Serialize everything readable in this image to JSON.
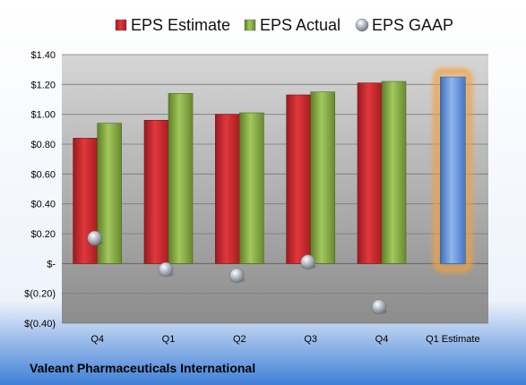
{
  "chart_data": {
    "type": "bar",
    "categories": [
      "Q4",
      "Q1",
      "Q2",
      "Q3",
      "Q4",
      "Q1 Estimate"
    ],
    "series": [
      {
        "name": "EPS Estimate",
        "color": "#c0252a",
        "values": [
          0.84,
          0.96,
          1.0,
          1.13,
          1.21,
          null
        ]
      },
      {
        "name": "EPS Actual",
        "color": "#7da33c",
        "values": [
          0.94,
          1.14,
          1.01,
          1.15,
          1.22,
          null
        ]
      },
      {
        "name": "EPS GAAP",
        "color": "#a0a8b2",
        "marker": "sphere",
        "values": [
          0.17,
          -0.04,
          -0.08,
          0.01,
          -0.29,
          null
        ]
      },
      {
        "name": "Q1 Estimate",
        "color": "#5b8fd8",
        "highlight": "#f5a03c",
        "values": [
          null,
          null,
          null,
          null,
          null,
          1.25
        ]
      }
    ],
    "y_ticks": [
      "$(0.40)",
      "$(0.20)",
      "$-",
      "$0.20",
      "$0.40",
      "$0.60",
      "$0.80",
      "$1.00",
      "$1.20",
      "$1.40"
    ],
    "y_tick_values": [
      -0.4,
      -0.2,
      0,
      0.2,
      0.4,
      0.6,
      0.8,
      1.0,
      1.2,
      1.4
    ],
    "ylim": [
      -0.4,
      1.4
    ],
    "grid": true,
    "legend_position": "top",
    "footer": "Valeant Pharmaceuticals International"
  }
}
